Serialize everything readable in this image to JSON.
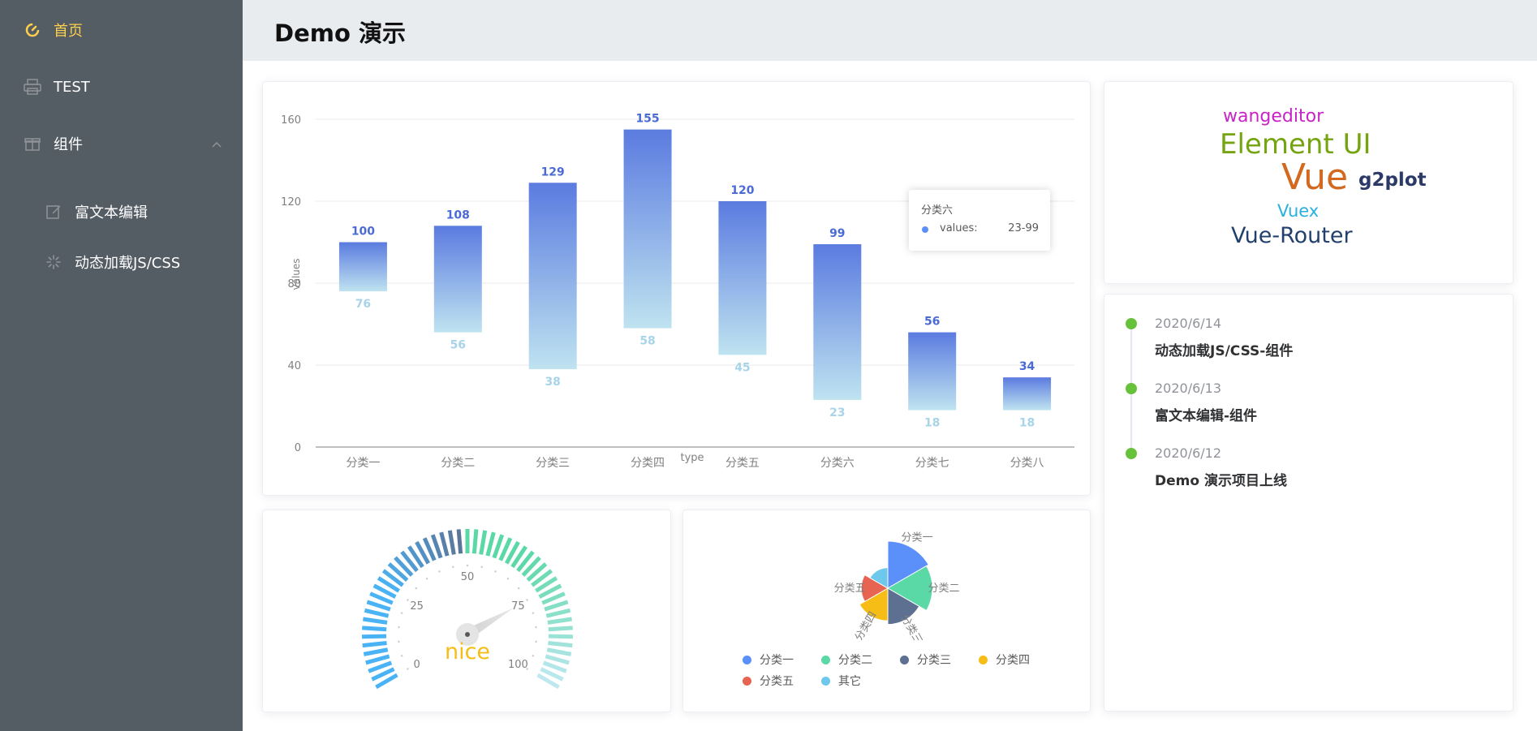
{
  "sidebar": {
    "items": [
      {
        "label": "首页",
        "icon": "dashboard-icon",
        "active": true
      },
      {
        "label": "TEST",
        "icon": "printer-icon"
      },
      {
        "label": "组件",
        "icon": "gift-icon",
        "expanded": true,
        "children": [
          {
            "label": "富文本编辑",
            "icon": "edit-icon"
          },
          {
            "label": "动态加载JS/CSS",
            "icon": "loading-icon"
          }
        ]
      }
    ]
  },
  "header": {
    "title": "Demo 演示"
  },
  "colors": {
    "sidebar_bg": "#545c64",
    "active": "#ffd04b",
    "accent": "#5b8ff9",
    "timeline": "#67c23a"
  },
  "chart_data": [
    {
      "type": "bar",
      "subtype": "range",
      "categories": [
        "分类一",
        "分类二",
        "分类三",
        "分类四",
        "分类五",
        "分类六",
        "分类七",
        "分类八"
      ],
      "series": [
        {
          "name": "values",
          "low": [
            76,
            56,
            38,
            58,
            45,
            23,
            18,
            18
          ],
          "high": [
            100,
            108,
            129,
            155,
            120,
            99,
            56,
            34
          ]
        }
      ],
      "xlabel": "type",
      "ylabel": "values",
      "ylim": [
        0,
        160
      ],
      "yticks": [
        0,
        40,
        80,
        120,
        160
      ],
      "grid": true,
      "tooltip": {
        "title": "分类六",
        "label": "values:",
        "value": "23-99"
      }
    },
    {
      "type": "gauge",
      "value": 0.75,
      "range": [
        0,
        100
      ],
      "ticks": [
        0,
        25,
        50,
        75,
        100
      ],
      "label": "nice"
    },
    {
      "type": "pie",
      "subtype": "rose",
      "categories": [
        "分类一",
        "分类二",
        "分类三",
        "分类四",
        "分类五",
        "其它"
      ],
      "values": [
        27,
        25,
        18,
        15,
        10,
        5
      ],
      "colors": [
        "#5b8ff9",
        "#5ad8a6",
        "#5d7092",
        "#f6bd16",
        "#e86452",
        "#6dc8ec"
      ],
      "legend": "bottom"
    }
  ],
  "wordcloud": [
    {
      "text": "wangeditor",
      "color": "#c724c7"
    },
    {
      "text": "Element UI",
      "color": "#74a40f"
    },
    {
      "text": "Vue",
      "color": "#d2691e"
    },
    {
      "text": "g2plot",
      "color": "#2b3a67"
    },
    {
      "text": "Vuex",
      "color": "#27b0e0"
    },
    {
      "text": "Vue-Router",
      "color": "#22406e"
    }
  ],
  "timeline": [
    {
      "timestamp": "2020/6/14",
      "content": "动态加载JS/CSS-组件"
    },
    {
      "timestamp": "2020/6/13",
      "content": "富文本编辑-组件"
    },
    {
      "timestamp": "2020/6/12",
      "content": "Demo 演示项目上线"
    }
  ]
}
